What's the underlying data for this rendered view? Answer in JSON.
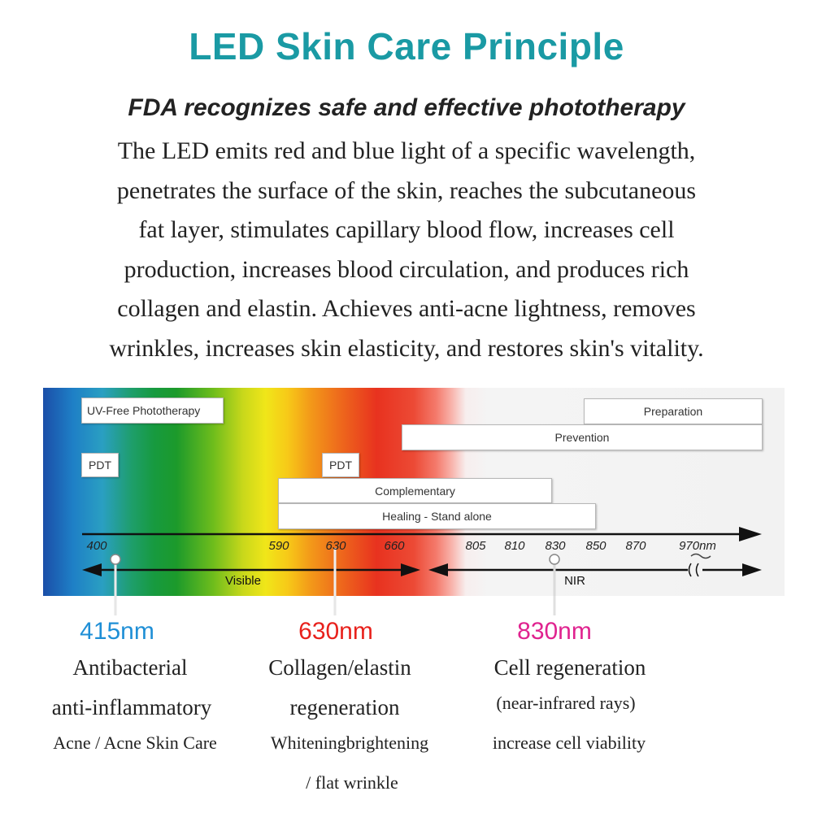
{
  "title": "LED Skin Care Principle",
  "subtitle": "FDA recognizes safe and effective phototherapy",
  "description_lines": [
    "The LED emits red and blue light of a specific wavelength,",
    "penetrates the surface of the skin, reaches the subcutaneous",
    "fat layer, stimulates capillary blood flow, increases cell",
    "production, increases blood circulation, and produces rich",
    "collagen and elastin. Achieves anti-acne lightness, removes",
    "wrinkles, increases skin elasticity, and restores skin's vitality."
  ],
  "diagram": {
    "boxes": {
      "uv_free": "UV-Free Phototherapy",
      "pdt_left": "PDT",
      "pdt_right": "PDT",
      "preparation": "Preparation",
      "prevention": "Prevention",
      "complementary": "Complementary",
      "healing": "Healing - Stand alone"
    },
    "ticks": [
      "400",
      "590",
      "630",
      "660",
      "805",
      "810",
      "830",
      "850",
      "870",
      "970nm"
    ],
    "visible_label": "Visible",
    "nir_label": "NIR",
    "colors": {
      "blue": "#1f8fd6",
      "red": "#e8211c",
      "magenta": "#e0238f",
      "title": "#1a9aa4"
    }
  },
  "wavelengths": [
    {
      "label": "415nm",
      "color": "#1f8fd6",
      "lines": [
        "Antibacterial",
        "anti-inflammatory",
        "Acne / Acne Skin Care"
      ]
    },
    {
      "label": "630nm",
      "color": "#e8211c",
      "lines": [
        "Collagen/elastin",
        "regeneration",
        "Whiteningbrightening",
        "/ flat wrinkle"
      ]
    },
    {
      "label": "830nm",
      "color": "#e0238f",
      "lines": [
        "Cell regeneration",
        "(near-infrared rays)",
        "increase cell viability"
      ]
    }
  ]
}
